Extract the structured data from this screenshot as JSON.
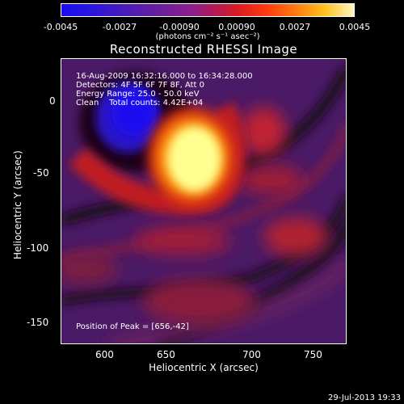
{
  "colorbar": {
    "tick_labels": [
      "-0.0045",
      "-0.0027",
      "-0.00090",
      "0.00090",
      "0.0027",
      "0.0045"
    ],
    "unit_label": "(photons cm⁻² s⁻¹ asec⁻²)"
  },
  "plot": {
    "title": "Reconstructed RHESSI Image",
    "info_lines": [
      "16-Aug-2009 16:32:16.000 to 16:34:28.000",
      "Detectors: 4F 5F 6F 7F 8F, Att 0",
      "Energy Range: 25.0 - 50.0 keV",
      "Clean    Total counts: 4.42E+04"
    ],
    "peak_text": "Position of Peak = [656,-42]",
    "xlabel": "Heliocentric X (arcsec)",
    "ylabel": "Heliocentric Y (arcsec)",
    "x_ticks": [
      "600",
      "650",
      "700",
      "750"
    ],
    "y_ticks": [
      "0",
      "-50",
      "-100",
      "-150"
    ]
  },
  "footer": {
    "date": "29-Jul-2013 19:33"
  }
}
